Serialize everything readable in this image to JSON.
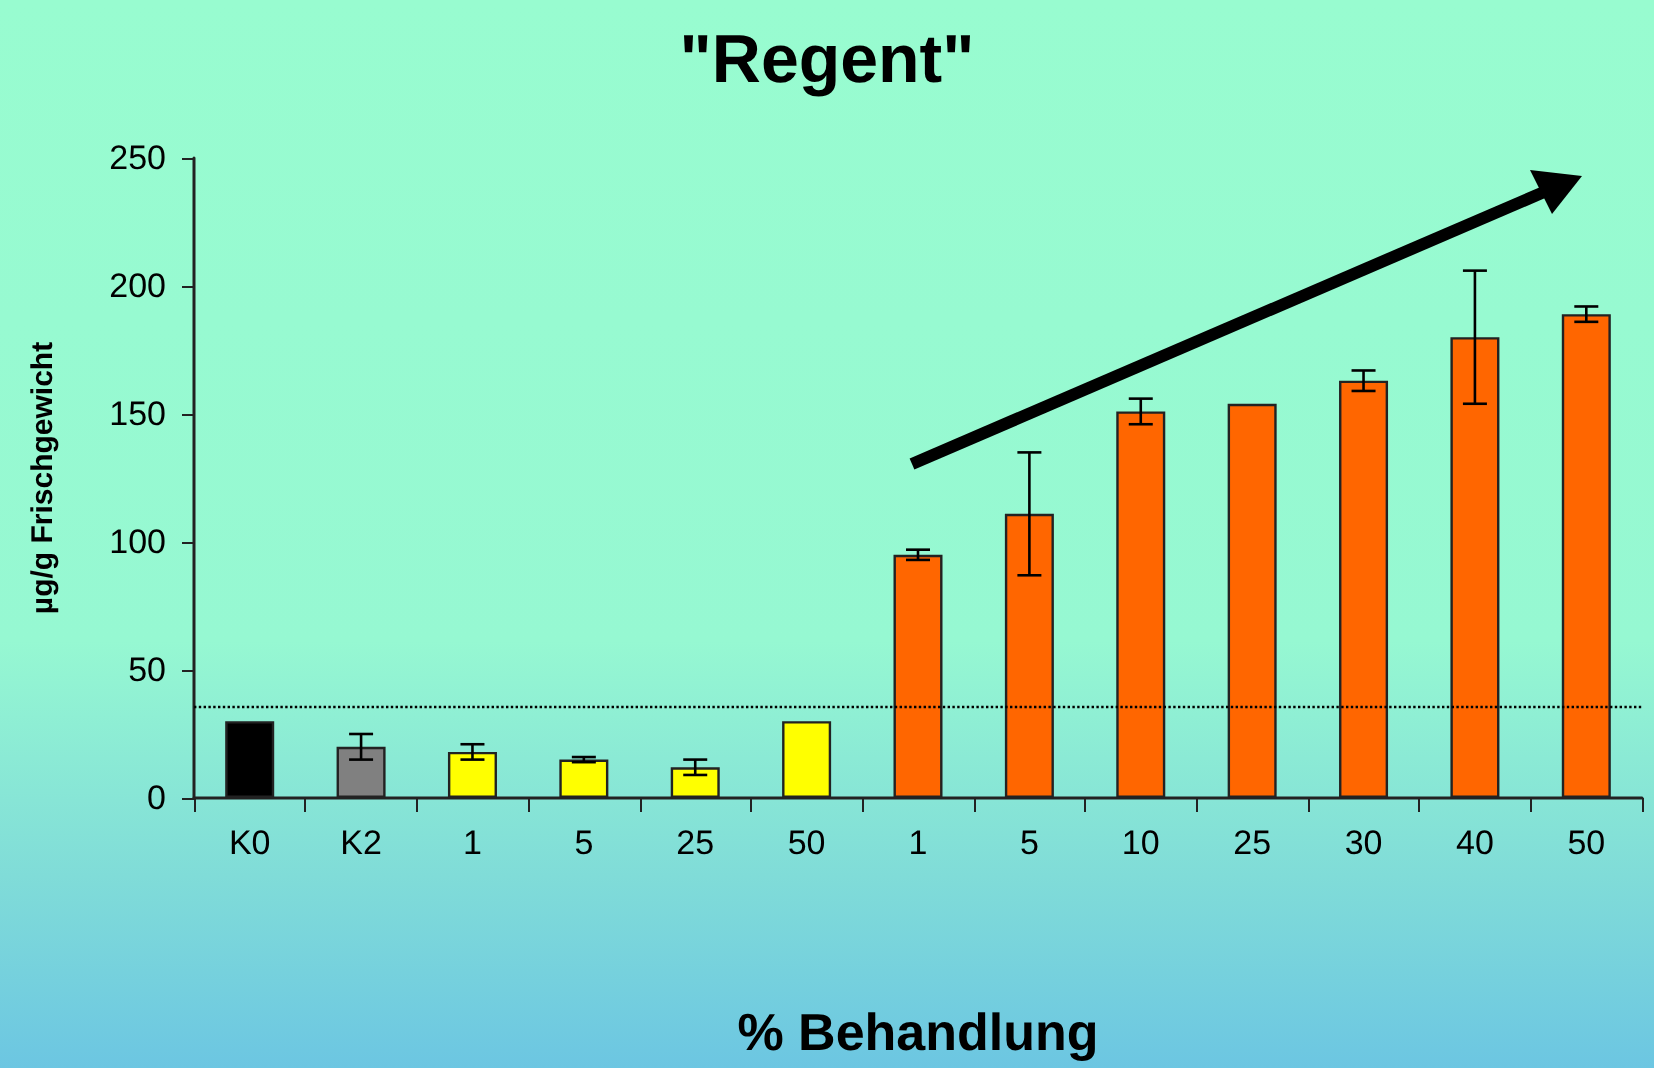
{
  "chart_data": {
    "type": "bar",
    "title": "\"Regent\"",
    "xlabel": "% Behandlung",
    "ylabel": "µg/g Frischgewicht",
    "categories": [
      "K0",
      "K2",
      "1",
      "5",
      "25",
      "50",
      "1",
      "5",
      "10",
      "25",
      "30",
      "40",
      "50"
    ],
    "values": [
      30,
      20,
      18,
      15,
      12,
      30,
      95,
      111,
      151,
      154,
      163,
      180,
      189
    ],
    "errors": [
      null,
      5,
      3,
      1,
      3,
      null,
      2,
      24,
      5,
      null,
      4,
      26,
      3
    ],
    "colors": [
      "#000000",
      "#808080",
      "#ffff00",
      "#ffff00",
      "#ffff00",
      "#ffff00",
      "#ff6600",
      "#ff6600",
      "#ff6600",
      "#ff6600",
      "#ff6600",
      "#ff6600",
      "#ff6600"
    ],
    "ylim": [
      0,
      250
    ],
    "yticks": [
      0,
      50,
      100,
      150,
      200,
      250
    ],
    "grid": false,
    "ref_lines": [
      {
        "axis": "y",
        "value": 36,
        "line_style": "dotted",
        "color": "#000000"
      }
    ]
  }
}
